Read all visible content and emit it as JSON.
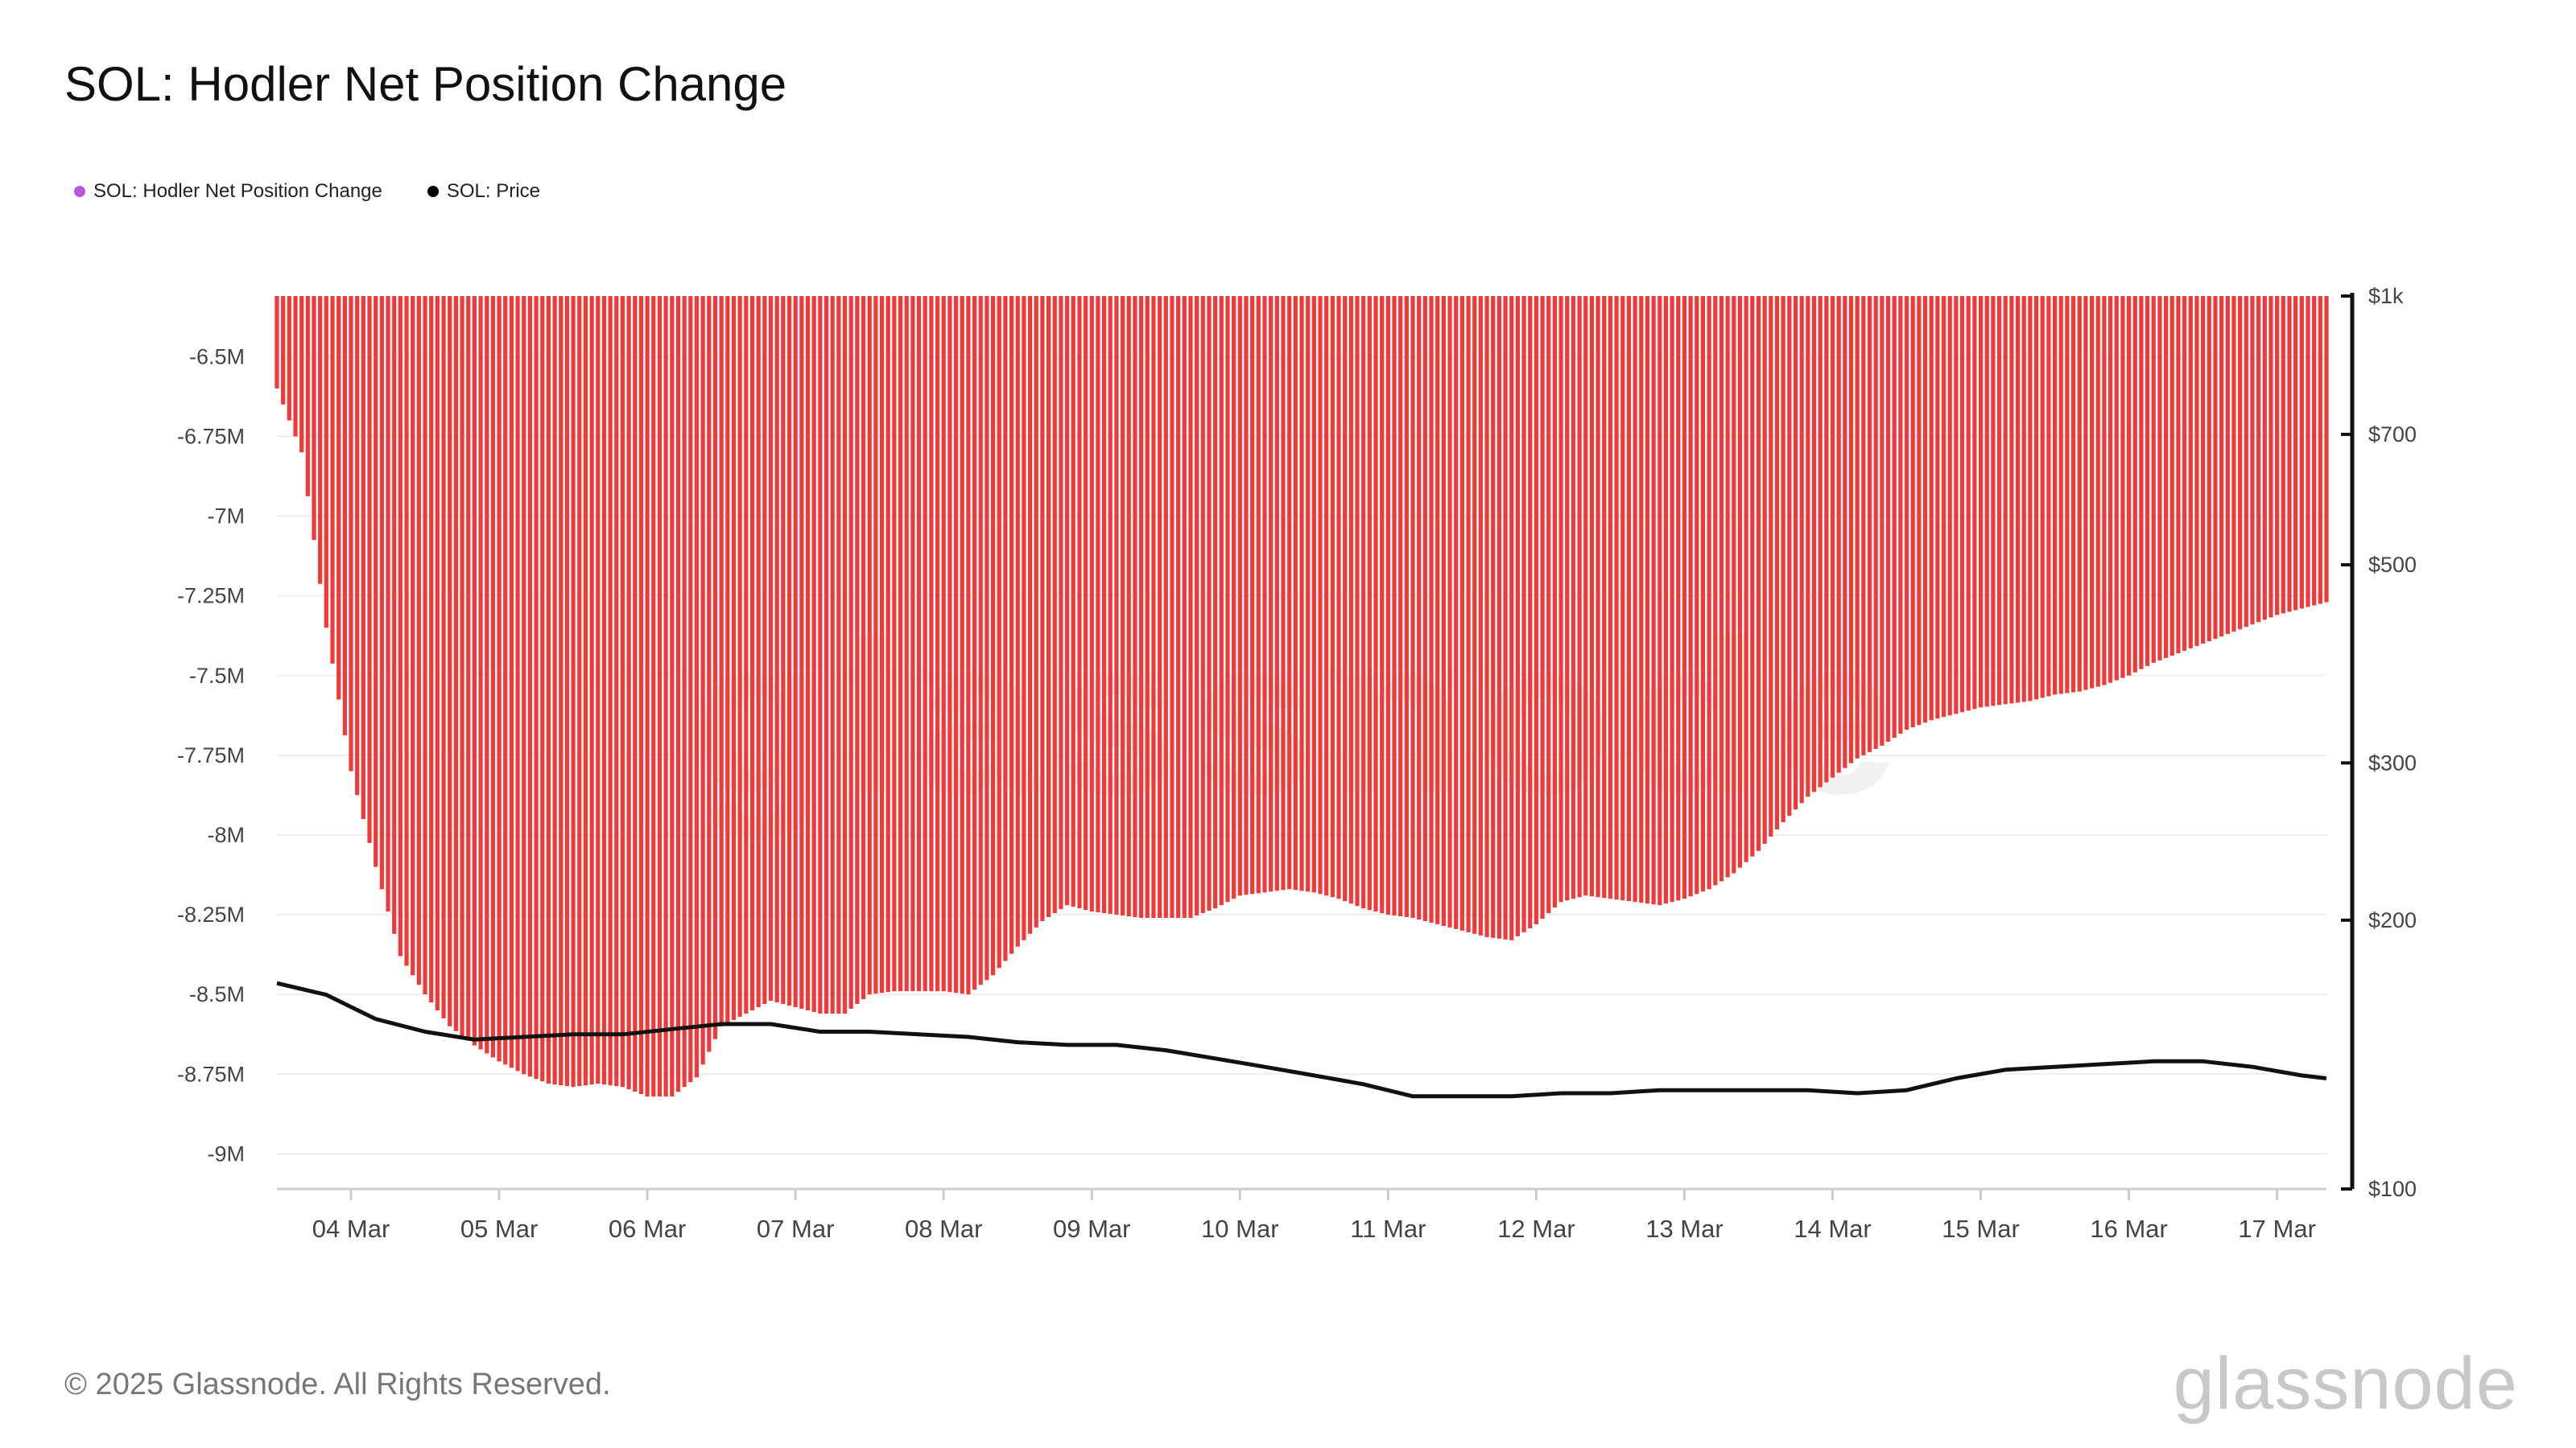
{
  "title": "SOL: Hodler Net Position Change",
  "legend": [
    {
      "label": "SOL: Hodler Net Position Change",
      "color": "#b05ae0"
    },
    {
      "label": "SOL: Price",
      "color": "#000000"
    }
  ],
  "footer": "© 2025 Glassnode. All Rights Reserved.",
  "brand": "glassnode",
  "watermark": "glassnode",
  "colors": {
    "bars": "#f03a3a",
    "price_line": "#111111",
    "grid": "#eeeeee",
    "axis": "#cccccc"
  },
  "chart_data": {
    "type": "bar",
    "series": [
      {
        "name": "SOL: Hodler Net Position Change",
        "axis": "left",
        "mark": "bar",
        "points": [
          [
            "03 Mar 12:00",
            -6.6
          ],
          [
            "03 Mar 16:00",
            -6.8
          ],
          [
            "03 Mar 20:00",
            -7.35
          ],
          [
            "04 Mar 00:00",
            -7.8
          ],
          [
            "04 Mar 04:00",
            -8.1
          ],
          [
            "04 Mar 08:00",
            -8.38
          ],
          [
            "04 Mar 12:00",
            -8.5
          ],
          [
            "04 Mar 16:00",
            -8.6
          ],
          [
            "04 Mar 20:00",
            -8.66
          ],
          [
            "05 Mar 00:00",
            -8.71
          ],
          [
            "05 Mar 04:00",
            -8.75
          ],
          [
            "05 Mar 08:00",
            -8.78
          ],
          [
            "05 Mar 12:00",
            -8.79
          ],
          [
            "05 Mar 16:00",
            -8.78
          ],
          [
            "05 Mar 20:00",
            -8.79
          ],
          [
            "06 Mar 00:00",
            -8.82
          ],
          [
            "06 Mar 04:00",
            -8.82
          ],
          [
            "06 Mar 08:00",
            -8.76
          ],
          [
            "06 Mar 12:00",
            -8.6
          ],
          [
            "06 Mar 16:00",
            -8.56
          ],
          [
            "06 Mar 20:00",
            -8.52
          ],
          [
            "07 Mar 00:00",
            -8.54
          ],
          [
            "07 Mar 04:00",
            -8.56
          ],
          [
            "07 Mar 08:00",
            -8.56
          ],
          [
            "07 Mar 12:00",
            -8.5
          ],
          [
            "07 Mar 16:00",
            -8.49
          ],
          [
            "07 Mar 20:00",
            -8.49
          ],
          [
            "08 Mar 00:00",
            -8.49
          ],
          [
            "08 Mar 04:00",
            -8.5
          ],
          [
            "08 Mar 08:00",
            -8.44
          ],
          [
            "08 Mar 12:00",
            -8.35
          ],
          [
            "08 Mar 16:00",
            -8.27
          ],
          [
            "08 Mar 20:00",
            -8.22
          ],
          [
            "09 Mar 00:00",
            -8.24
          ],
          [
            "09 Mar 04:00",
            -8.25
          ],
          [
            "09 Mar 08:00",
            -8.26
          ],
          [
            "09 Mar 12:00",
            -8.26
          ],
          [
            "09 Mar 16:00",
            -8.26
          ],
          [
            "09 Mar 20:00",
            -8.23
          ],
          [
            "10 Mar 00:00",
            -8.19
          ],
          [
            "10 Mar 04:00",
            -8.18
          ],
          [
            "10 Mar 08:00",
            -8.17
          ],
          [
            "10 Mar 12:00",
            -8.18
          ],
          [
            "10 Mar 16:00",
            -8.2
          ],
          [
            "10 Mar 20:00",
            -8.23
          ],
          [
            "11 Mar 00:00",
            -8.25
          ],
          [
            "11 Mar 04:00",
            -8.26
          ],
          [
            "11 Mar 08:00",
            -8.28
          ],
          [
            "11 Mar 12:00",
            -8.3
          ],
          [
            "11 Mar 16:00",
            -8.32
          ],
          [
            "11 Mar 20:00",
            -8.33
          ],
          [
            "12 Mar 00:00",
            -8.28
          ],
          [
            "12 Mar 04:00",
            -8.21
          ],
          [
            "12 Mar 08:00",
            -8.19
          ],
          [
            "12 Mar 12:00",
            -8.2
          ],
          [
            "12 Mar 16:00",
            -8.21
          ],
          [
            "12 Mar 20:00",
            -8.22
          ],
          [
            "13 Mar 00:00",
            -8.2
          ],
          [
            "13 Mar 04:00",
            -8.17
          ],
          [
            "13 Mar 08:00",
            -8.12
          ],
          [
            "13 Mar 12:00",
            -8.05
          ],
          [
            "13 Mar 16:00",
            -7.96
          ],
          [
            "13 Mar 20:00",
            -7.88
          ],
          [
            "14 Mar 00:00",
            -7.82
          ],
          [
            "14 Mar 04:00",
            -7.76
          ],
          [
            "14 Mar 08:00",
            -7.72
          ],
          [
            "14 Mar 12:00",
            -7.67
          ],
          [
            "14 Mar 16:00",
            -7.64
          ],
          [
            "14 Mar 20:00",
            -7.62
          ],
          [
            "15 Mar 00:00",
            -7.6
          ],
          [
            "15 Mar 04:00",
            -7.59
          ],
          [
            "15 Mar 08:00",
            -7.58
          ],
          [
            "15 Mar 12:00",
            -7.56
          ],
          [
            "15 Mar 16:00",
            -7.55
          ],
          [
            "15 Mar 20:00",
            -7.53
          ],
          [
            "16 Mar 00:00",
            -7.5
          ],
          [
            "16 Mar 04:00",
            -7.46
          ],
          [
            "16 Mar 08:00",
            -7.43
          ],
          [
            "16 Mar 12:00",
            -7.4
          ],
          [
            "16 Mar 16:00",
            -7.37
          ],
          [
            "16 Mar 20:00",
            -7.34
          ],
          [
            "17 Mar 00:00",
            -7.31
          ],
          [
            "17 Mar 04:00",
            -7.29
          ],
          [
            "17 Mar 08:00",
            -7.27
          ]
        ]
      },
      {
        "name": "SOL: Price",
        "axis": "right",
        "mark": "line",
        "points": [
          [
            "03 Mar 12:00",
            170
          ],
          [
            "03 Mar 20:00",
            165
          ],
          [
            "04 Mar 04:00",
            155
          ],
          [
            "04 Mar 12:00",
            150
          ],
          [
            "04 Mar 20:00",
            147
          ],
          [
            "05 Mar 04:00",
            148
          ],
          [
            "05 Mar 12:00",
            149
          ],
          [
            "05 Mar 20:00",
            149
          ],
          [
            "06 Mar 04:00",
            151
          ],
          [
            "06 Mar 12:00",
            153
          ],
          [
            "06 Mar 20:00",
            153
          ],
          [
            "07 Mar 04:00",
            150
          ],
          [
            "07 Mar 12:00",
            150
          ],
          [
            "07 Mar 20:00",
            149
          ],
          [
            "08 Mar 04:00",
            148
          ],
          [
            "08 Mar 12:00",
            146
          ],
          [
            "08 Mar 20:00",
            145
          ],
          [
            "09 Mar 04:00",
            145
          ],
          [
            "09 Mar 12:00",
            143
          ],
          [
            "09 Mar 20:00",
            140
          ],
          [
            "10 Mar 04:00",
            137
          ],
          [
            "10 Mar 12:00",
            134
          ],
          [
            "10 Mar 20:00",
            131
          ],
          [
            "11 Mar 04:00",
            127
          ],
          [
            "11 Mar 12:00",
            127
          ],
          [
            "11 Mar 20:00",
            127
          ],
          [
            "12 Mar 04:00",
            128
          ],
          [
            "12 Mar 12:00",
            128
          ],
          [
            "12 Mar 20:00",
            129
          ],
          [
            "13 Mar 04:00",
            129
          ],
          [
            "13 Mar 12:00",
            129
          ],
          [
            "13 Mar 20:00",
            129
          ],
          [
            "14 Mar 04:00",
            128
          ],
          [
            "14 Mar 12:00",
            129
          ],
          [
            "14 Mar 20:00",
            133
          ],
          [
            "15 Mar 04:00",
            136
          ],
          [
            "15 Mar 12:00",
            137
          ],
          [
            "15 Mar 20:00",
            138
          ],
          [
            "16 Mar 04:00",
            139
          ],
          [
            "16 Mar 12:00",
            139
          ],
          [
            "16 Mar 20:00",
            137
          ],
          [
            "17 Mar 04:00",
            134
          ],
          [
            "17 Mar 08:00",
            133
          ]
        ]
      }
    ],
    "x_start": "03 Mar 12:00",
    "x_end": "17 Mar 08:00",
    "x_ticks": [
      "04 Mar",
      "05 Mar",
      "06 Mar",
      "07 Mar",
      "08 Mar",
      "09 Mar",
      "10 Mar",
      "11 Mar",
      "12 Mar",
      "13 Mar",
      "14 Mar",
      "15 Mar",
      "16 Mar",
      "17 Mar"
    ],
    "y_left": {
      "ticks": [
        -6.5,
        -6.75,
        -7,
        -7.25,
        -7.5,
        -7.75,
        -8,
        -8.25,
        -8.5,
        -8.75,
        -9
      ],
      "tick_labels": [
        "-6.5M",
        "-6.75M",
        "-7M",
        "-7.25M",
        "-7.5M",
        "-7.75M",
        "-8M",
        "-8.25M",
        "-8.5M",
        "-8.75M",
        "-9M"
      ],
      "range": [
        -9.11,
        -6.31
      ]
    },
    "y_right": {
      "scale": "log",
      "ticks": [
        1000,
        700,
        500,
        300,
        200,
        100
      ],
      "tick_labels": [
        "$1k",
        "$700",
        "$500",
        "$300",
        "$200",
        "$100"
      ],
      "range": [
        100,
        1000
      ]
    },
    "grid": true,
    "legend_position": "top-left"
  }
}
